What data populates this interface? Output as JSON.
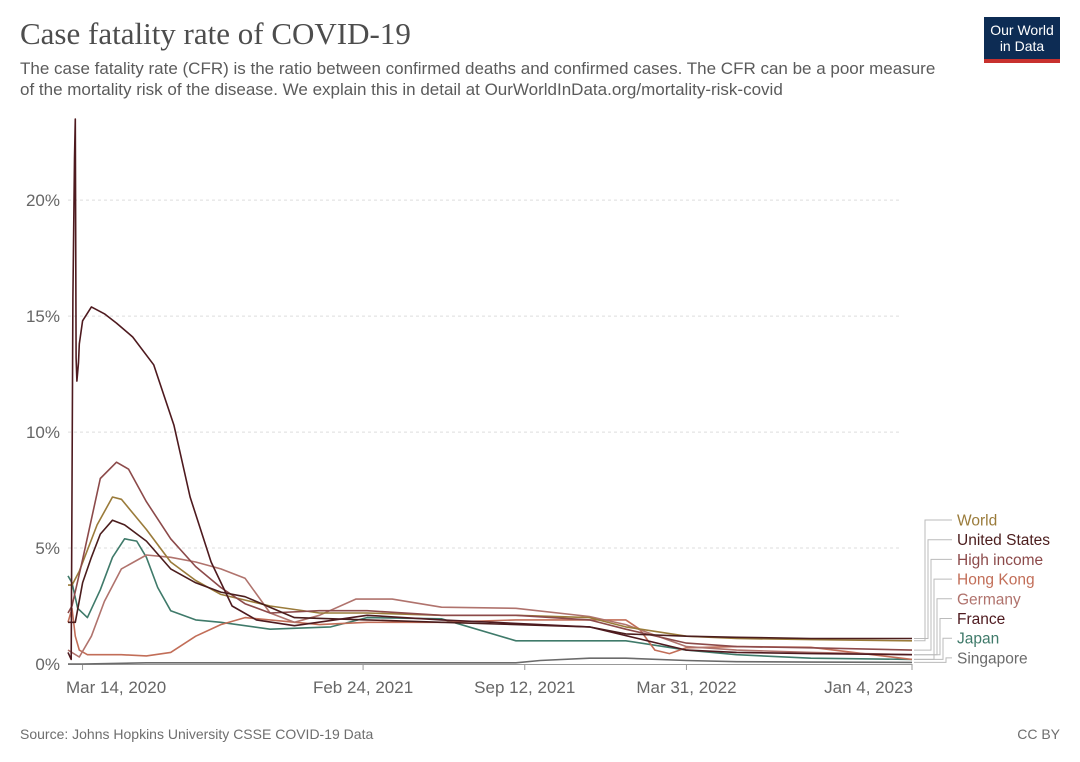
{
  "header": {
    "title": "Case fatality rate of COVID-19",
    "subtitle": "The case fatality rate (CFR) is the ratio between confirmed deaths and confirmed cases. The CFR can be a poor measure of the mortality risk of the disease. We explain this in detail at OurWorldInData.org/mortality-risk-covid",
    "logo_line1": "Our World",
    "logo_line2": "in Data"
  },
  "footer": {
    "source": "Source: Johns Hopkins University CSSE COVID-19 Data",
    "license": "CC BY"
  },
  "chart_data": {
    "type": "line",
    "title": "Case fatality rate of COVID-19",
    "xlabel": "",
    "ylabel": "",
    "xlim": [
      "2020-02-25",
      "2023-01-04"
    ],
    "ylim": [
      0,
      23.5
    ],
    "y_ticks": [
      0,
      5,
      10,
      15,
      20
    ],
    "y_tick_labels": [
      "0%",
      "5%",
      "10%",
      "15%",
      "20%"
    ],
    "x_ticks": [
      "2020-03-14",
      "2021-02-24",
      "2021-09-12",
      "2022-03-31",
      "2023-01-04"
    ],
    "x_tick_labels": [
      "Mar 14, 2020",
      "Feb 24, 2021",
      "Sep 12, 2021",
      "Mar 31, 2022",
      "Jan 4, 2023"
    ],
    "grid": "horizontal dashed",
    "legend": "right, end-of-line labels",
    "series": [
      {
        "name": "World",
        "color": "#9a7b3a",
        "x": [
          "2020-02-25",
          "2020-03-01",
          "2020-03-10",
          "2020-04-01",
          "2020-04-20",
          "2020-05-01",
          "2020-06-01",
          "2020-07-01",
          "2020-08-01",
          "2020-09-01",
          "2020-11-01",
          "2021-01-01",
          "2021-03-01",
          "2021-06-01",
          "2021-09-01",
          "2021-12-01",
          "2022-01-15",
          "2022-03-31",
          "2022-06-01",
          "2022-09-01",
          "2023-01-04"
        ],
        "y": [
          3.4,
          3.4,
          4.0,
          6.0,
          7.2,
          7.1,
          5.8,
          4.4,
          3.6,
          3.0,
          2.5,
          2.2,
          2.2,
          2.1,
          2.1,
          2.0,
          1.6,
          1.2,
          1.1,
          1.05,
          1.0
        ]
      },
      {
        "name": "United States",
        "color": "#4b1d1d",
        "x": [
          "2020-02-25",
          "2020-03-05",
          "2020-03-14",
          "2020-03-25",
          "2020-04-05",
          "2020-04-20",
          "2020-05-05",
          "2020-06-01",
          "2020-07-01",
          "2020-08-01",
          "2020-09-01",
          "2020-10-01",
          "2020-12-01",
          "2021-03-01",
          "2021-06-01",
          "2021-09-01",
          "2021-12-01",
          "2022-01-15",
          "2022-03-31",
          "2022-06-01",
          "2022-09-01",
          "2023-01-04"
        ],
        "y": [
          1.8,
          1.8,
          3.5,
          4.6,
          5.6,
          6.2,
          6.0,
          5.3,
          4.1,
          3.5,
          3.1,
          2.9,
          2.0,
          1.9,
          1.8,
          1.7,
          1.6,
          1.3,
          1.2,
          1.15,
          1.1,
          1.1
        ]
      },
      {
        "name": "High income",
        "color": "#8c4a4a",
        "x": [
          "2020-02-25",
          "2020-03-01",
          "2020-03-14",
          "2020-04-05",
          "2020-04-25",
          "2020-05-10",
          "2020-06-01",
          "2020-07-01",
          "2020-08-01",
          "2020-09-01",
          "2020-10-01",
          "2020-11-01",
          "2021-01-01",
          "2021-03-01",
          "2021-06-01",
          "2021-09-01",
          "2021-12-01",
          "2022-01-15",
          "2022-03-31",
          "2022-06-01",
          "2022-09-01",
          "2023-01-04"
        ],
        "y": [
          2.2,
          2.5,
          4.5,
          8.0,
          8.7,
          8.4,
          7.0,
          5.4,
          4.2,
          3.3,
          2.6,
          2.2,
          2.3,
          2.3,
          2.1,
          2.1,
          1.9,
          1.5,
          0.9,
          0.75,
          0.7,
          0.6
        ]
      },
      {
        "name": "Hong Kong",
        "color": "#c26e58",
        "x": [
          "2020-02-25",
          "2020-03-01",
          "2020-03-05",
          "2020-03-10",
          "2020-03-20",
          "2020-05-01",
          "2020-06-01",
          "2020-07-01",
          "2020-08-01",
          "2020-09-01",
          "2020-10-01",
          "2021-01-01",
          "2021-03-01",
          "2021-06-01",
          "2021-09-01",
          "2021-12-01",
          "2022-01-15",
          "2022-02-01",
          "2022-02-20",
          "2022-03-10",
          "2022-03-31",
          "2022-06-01",
          "2022-09-01",
          "2023-01-04"
        ],
        "y": [
          1.8,
          2.4,
          1.2,
          0.6,
          0.4,
          0.4,
          0.35,
          0.5,
          1.2,
          1.7,
          2.0,
          1.7,
          1.8,
          1.8,
          1.9,
          1.9,
          1.9,
          1.5,
          0.6,
          0.45,
          0.7,
          0.75,
          0.72,
          0.2
        ]
      },
      {
        "name": "Germany",
        "color": "#b0736d",
        "x": [
          "2020-02-25",
          "2020-03-10",
          "2020-03-25",
          "2020-04-10",
          "2020-05-01",
          "2020-06-01",
          "2020-07-01",
          "2020-08-01",
          "2020-09-01",
          "2020-10-01",
          "2020-11-01",
          "2020-12-01",
          "2021-01-01",
          "2021-02-15",
          "2021-04-01",
          "2021-06-01",
          "2021-09-01",
          "2021-12-01",
          "2022-01-15",
          "2022-03-31",
          "2022-06-01",
          "2022-09-01",
          "2023-01-04"
        ],
        "y": [
          0.6,
          0.3,
          1.2,
          2.7,
          4.1,
          4.7,
          4.6,
          4.4,
          4.1,
          3.7,
          2.2,
          1.8,
          2.1,
          2.8,
          2.8,
          2.45,
          2.4,
          2.05,
          1.7,
          0.75,
          0.6,
          0.5,
          0.4
        ]
      },
      {
        "name": "France",
        "color": "#4e1a1f",
        "x": [
          "2020-02-25",
          "2020-02-29",
          "2020-03-02",
          "2020-03-04",
          "2020-03-05",
          "2020-03-06",
          "2020-03-07",
          "2020-03-08",
          "2020-03-09",
          "2020-03-10",
          "2020-03-14",
          "2020-03-25",
          "2020-04-10",
          "2020-04-25",
          "2020-05-15",
          "2020-06-10",
          "2020-07-05",
          "2020-07-25",
          "2020-08-20",
          "2020-09-15",
          "2020-10-15",
          "2020-12-01",
          "2021-03-01",
          "2021-06-01",
          "2021-09-01",
          "2021-12-01",
          "2022-03-31",
          "2022-06-01",
          "2022-09-01",
          "2023-01-04"
        ],
        "y": [
          0.5,
          0.2,
          15.8,
          21.8,
          23.5,
          13.2,
          12.2,
          12.6,
          13.0,
          13.8,
          14.8,
          15.4,
          15.1,
          14.7,
          14.1,
          12.9,
          10.3,
          7.2,
          4.4,
          2.5,
          1.9,
          1.65,
          2.1,
          1.9,
          1.75,
          1.6,
          0.6,
          0.5,
          0.45,
          0.4
        ]
      },
      {
        "name": "Japan",
        "color": "#3f7a6a",
        "x": [
          "2020-02-25",
          "2020-03-01",
          "2020-03-08",
          "2020-03-20",
          "2020-04-05",
          "2020-04-20",
          "2020-05-05",
          "2020-05-20",
          "2020-06-01",
          "2020-06-15",
          "2020-07-01",
          "2020-08-01",
          "2020-09-01",
          "2020-11-01",
          "2021-01-15",
          "2021-03-01",
          "2021-06-01",
          "2021-09-01",
          "2021-12-01",
          "2022-01-15",
          "2022-03-31",
          "2022-06-01",
          "2022-09-01",
          "2023-01-04"
        ],
        "y": [
          3.8,
          3.5,
          2.4,
          2.0,
          3.2,
          4.6,
          5.4,
          5.3,
          4.6,
          3.3,
          2.3,
          1.9,
          1.8,
          1.5,
          1.6,
          2.0,
          1.95,
          1.0,
          1.0,
          1.0,
          0.6,
          0.4,
          0.25,
          0.2
        ]
      },
      {
        "name": "Singapore",
        "color": "#6b6b6b",
        "x": [
          "2020-02-25",
          "2020-03-14",
          "2020-06-01",
          "2020-09-01",
          "2021-01-01",
          "2021-06-01",
          "2021-09-01",
          "2021-10-01",
          "2021-12-01",
          "2022-01-15",
          "2022-03-31",
          "2022-06-01",
          "2022-09-01",
          "2023-01-04"
        ],
        "y": [
          0.0,
          0.0,
          0.05,
          0.05,
          0.05,
          0.05,
          0.05,
          0.15,
          0.25,
          0.25,
          0.15,
          0.1,
          0.08,
          0.07
        ]
      }
    ]
  }
}
